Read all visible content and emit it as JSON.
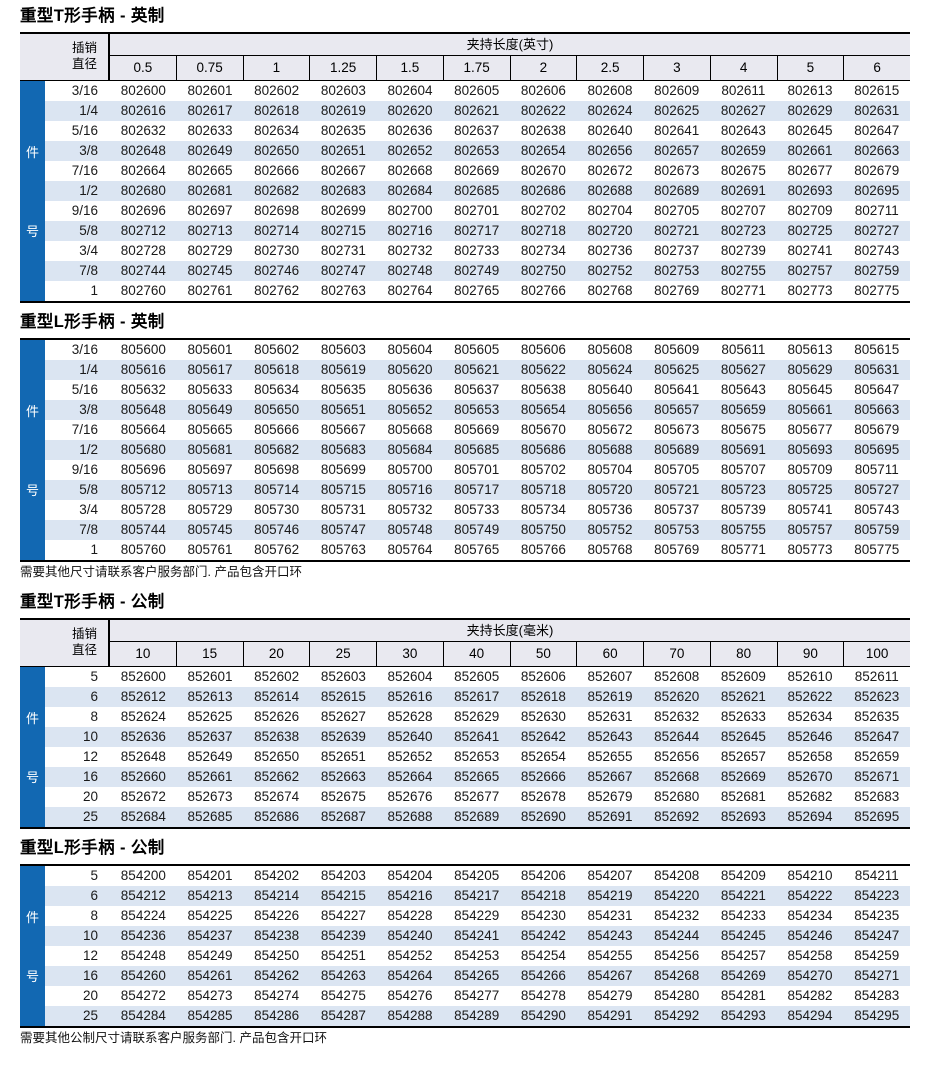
{
  "page": {
    "colors": {
      "accent_blue": "#1268b2",
      "alt_row": "#dbe5f2",
      "header_bg": "#e9e9f0",
      "border": "#000000"
    },
    "sections": [
      {
        "title": "重型T形手柄 - 英制",
        "pin_label_line1": "插销",
        "pin_label_line2": "直径",
        "span_label": "夹持长度(英寸)",
        "columns": [
          "0.5",
          "0.75",
          "1",
          "1.25",
          "1.5",
          "1.75",
          "2",
          "2.5",
          "3",
          "4",
          "5",
          "6"
        ],
        "side_label_top": "件",
        "side_label_bottom": "号",
        "rows": [
          {
            "label": "3/16",
            "values": [
              "802600",
              "802601",
              "802602",
              "802603",
              "802604",
              "802605",
              "802606",
              "802608",
              "802609",
              "802611",
              "802613",
              "802615"
            ]
          },
          {
            "label": "1/4",
            "values": [
              "802616",
              "802617",
              "802618",
              "802619",
              "802620",
              "802621",
              "802622",
              "802624",
              "802625",
              "802627",
              "802629",
              "802631"
            ]
          },
          {
            "label": "5/16",
            "values": [
              "802632",
              "802633",
              "802634",
              "802635",
              "802636",
              "802637",
              "802638",
              "802640",
              "802641",
              "802643",
              "802645",
              "802647"
            ]
          },
          {
            "label": "3/8",
            "values": [
              "802648",
              "802649",
              "802650",
              "802651",
              "802652",
              "802653",
              "802654",
              "802656",
              "802657",
              "802659",
              "802661",
              "802663"
            ]
          },
          {
            "label": "7/16",
            "values": [
              "802664",
              "802665",
              "802666",
              "802667",
              "802668",
              "802669",
              "802670",
              "802672",
              "802673",
              "802675",
              "802677",
              "802679"
            ]
          },
          {
            "label": "1/2",
            "values": [
              "802680",
              "802681",
              "802682",
              "802683",
              "802684",
              "802685",
              "802686",
              "802688",
              "802689",
              "802691",
              "802693",
              "802695"
            ]
          },
          {
            "label": "9/16",
            "values": [
              "802696",
              "802697",
              "802698",
              "802699",
              "802700",
              "802701",
              "802702",
              "802704",
              "802705",
              "802707",
              "802709",
              "802711"
            ]
          },
          {
            "label": "5/8",
            "values": [
              "802712",
              "802713",
              "802714",
              "802715",
              "802716",
              "802717",
              "802718",
              "802720",
              "802721",
              "802723",
              "802725",
              "802727"
            ]
          },
          {
            "label": "3/4",
            "values": [
              "802728",
              "802729",
              "802730",
              "802731",
              "802732",
              "802733",
              "802734",
              "802736",
              "802737",
              "802739",
              "802741",
              "802743"
            ]
          },
          {
            "label": "7/8",
            "values": [
              "802744",
              "802745",
              "802746",
              "802747",
              "802748",
              "802749",
              "802750",
              "802752",
              "802753",
              "802755",
              "802757",
              "802759"
            ]
          },
          {
            "label": "1",
            "values": [
              "802760",
              "802761",
              "802762",
              "802763",
              "802764",
              "802765",
              "802766",
              "802768",
              "802769",
              "802771",
              "802773",
              "802775"
            ]
          }
        ]
      },
      {
        "title": "重型L形手柄 - 英制",
        "side_label_top": "件",
        "side_label_bottom": "号",
        "note": "需要其他尺寸请联系客户服务部门.  产品包含开口环",
        "rows": [
          {
            "label": "3/16",
            "values": [
              "805600",
              "805601",
              "805602",
              "805603",
              "805604",
              "805605",
              "805606",
              "805608",
              "805609",
              "805611",
              "805613",
              "805615"
            ]
          },
          {
            "label": "1/4",
            "values": [
              "805616",
              "805617",
              "805618",
              "805619",
              "805620",
              "805621",
              "805622",
              "805624",
              "805625",
              "805627",
              "805629",
              "805631"
            ]
          },
          {
            "label": "5/16",
            "values": [
              "805632",
              "805633",
              "805634",
              "805635",
              "805636",
              "805637",
              "805638",
              "805640",
              "805641",
              "805643",
              "805645",
              "805647"
            ]
          },
          {
            "label": "3/8",
            "values": [
              "805648",
              "805649",
              "805650",
              "805651",
              "805652",
              "805653",
              "805654",
              "805656",
              "805657",
              "805659",
              "805661",
              "805663"
            ]
          },
          {
            "label": "7/16",
            "values": [
              "805664",
              "805665",
              "805666",
              "805667",
              "805668",
              "805669",
              "805670",
              "805672",
              "805673",
              "805675",
              "805677",
              "805679"
            ]
          },
          {
            "label": "1/2",
            "values": [
              "805680",
              "805681",
              "805682",
              "805683",
              "805684",
              "805685",
              "805686",
              "805688",
              "805689",
              "805691",
              "805693",
              "805695"
            ]
          },
          {
            "label": "9/16",
            "values": [
              "805696",
              "805697",
              "805698",
              "805699",
              "805700",
              "805701",
              "805702",
              "805704",
              "805705",
              "805707",
              "805709",
              "805711"
            ]
          },
          {
            "label": "5/8",
            "values": [
              "805712",
              "805713",
              "805714",
              "805715",
              "805716",
              "805717",
              "805718",
              "805720",
              "805721",
              "805723",
              "805725",
              "805727"
            ]
          },
          {
            "label": "3/4",
            "values": [
              "805728",
              "805729",
              "805730",
              "805731",
              "805732",
              "805733",
              "805734",
              "805736",
              "805737",
              "805739",
              "805741",
              "805743"
            ]
          },
          {
            "label": "7/8",
            "values": [
              "805744",
              "805745",
              "805746",
              "805747",
              "805748",
              "805749",
              "805750",
              "805752",
              "805753",
              "805755",
              "805757",
              "805759"
            ]
          },
          {
            "label": "1",
            "values": [
              "805760",
              "805761",
              "805762",
              "805763",
              "805764",
              "805765",
              "805766",
              "805768",
              "805769",
              "805771",
              "805773",
              "805775"
            ]
          }
        ]
      },
      {
        "title": "重型T形手柄 - 公制",
        "pin_label_line1": "插销",
        "pin_label_line2": "直径",
        "span_label": "夹持长度(毫米)",
        "columns": [
          "10",
          "15",
          "20",
          "25",
          "30",
          "40",
          "50",
          "60",
          "70",
          "80",
          "90",
          "100"
        ],
        "side_label_top": "件",
        "side_label_bottom": "号",
        "rows": [
          {
            "label": "5",
            "values": [
              "852600",
              "852601",
              "852602",
              "852603",
              "852604",
              "852605",
              "852606",
              "852607",
              "852608",
              "852609",
              "852610",
              "852611"
            ]
          },
          {
            "label": "6",
            "values": [
              "852612",
              "852613",
              "852614",
              "852615",
              "852616",
              "852617",
              "852618",
              "852619",
              "852620",
              "852621",
              "852622",
              "852623"
            ]
          },
          {
            "label": "8",
            "values": [
              "852624",
              "852625",
              "852626",
              "852627",
              "852628",
              "852629",
              "852630",
              "852631",
              "852632",
              "852633",
              "852634",
              "852635"
            ]
          },
          {
            "label": "10",
            "values": [
              "852636",
              "852637",
              "852638",
              "852639",
              "852640",
              "852641",
              "852642",
              "852643",
              "852644",
              "852645",
              "852646",
              "852647"
            ]
          },
          {
            "label": "12",
            "values": [
              "852648",
              "852649",
              "852650",
              "852651",
              "852652",
              "852653",
              "852654",
              "852655",
              "852656",
              "852657",
              "852658",
              "852659"
            ]
          },
          {
            "label": "16",
            "values": [
              "852660",
              "852661",
              "852662",
              "852663",
              "852664",
              "852665",
              "852666",
              "852667",
              "852668",
              "852669",
              "852670",
              "852671"
            ]
          },
          {
            "label": "20",
            "values": [
              "852672",
              "852673",
              "852674",
              "852675",
              "852676",
              "852677",
              "852678",
              "852679",
              "852680",
              "852681",
              "852682",
              "852683"
            ]
          },
          {
            "label": "25",
            "values": [
              "852684",
              "852685",
              "852686",
              "852687",
              "852688",
              "852689",
              "852690",
              "852691",
              "852692",
              "852693",
              "852694",
              "852695"
            ]
          }
        ]
      },
      {
        "title": "重型L形手柄 - 公制",
        "side_label_top": "件",
        "side_label_bottom": "号",
        "note": "需要其他公制尺寸请联系客户服务部门.  产品包含开口环",
        "rows": [
          {
            "label": "5",
            "values": [
              "854200",
              "854201",
              "854202",
              "854203",
              "854204",
              "854205",
              "854206",
              "854207",
              "854208",
              "854209",
              "854210",
              "854211"
            ]
          },
          {
            "label": "6",
            "values": [
              "854212",
              "854213",
              "854214",
              "854215",
              "854216",
              "854217",
              "854218",
              "854219",
              "854220",
              "854221",
              "854222",
              "854223"
            ]
          },
          {
            "label": "8",
            "values": [
              "854224",
              "854225",
              "854226",
              "854227",
              "854228",
              "854229",
              "854230",
              "854231",
              "854232",
              "854233",
              "854234",
              "854235"
            ]
          },
          {
            "label": "10",
            "values": [
              "854236",
              "854237",
              "854238",
              "854239",
              "854240",
              "854241",
              "854242",
              "854243",
              "854244",
              "854245",
              "854246",
              "854247"
            ]
          },
          {
            "label": "12",
            "values": [
              "854248",
              "854249",
              "854250",
              "854251",
              "854252",
              "854253",
              "854254",
              "854255",
              "854256",
              "854257",
              "854258",
              "854259"
            ]
          },
          {
            "label": "16",
            "values": [
              "854260",
              "854261",
              "854262",
              "854263",
              "854264",
              "854265",
              "854266",
              "854267",
              "854268",
              "854269",
              "854270",
              "854271"
            ]
          },
          {
            "label": "20",
            "values": [
              "854272",
              "854273",
              "854274",
              "854275",
              "854276",
              "854277",
              "854278",
              "854279",
              "854280",
              "854281",
              "854282",
              "854283"
            ]
          },
          {
            "label": "25",
            "values": [
              "854284",
              "854285",
              "854286",
              "854287",
              "854288",
              "854289",
              "854290",
              "854291",
              "854292",
              "854293",
              "854294",
              "854295"
            ]
          }
        ]
      }
    ]
  }
}
